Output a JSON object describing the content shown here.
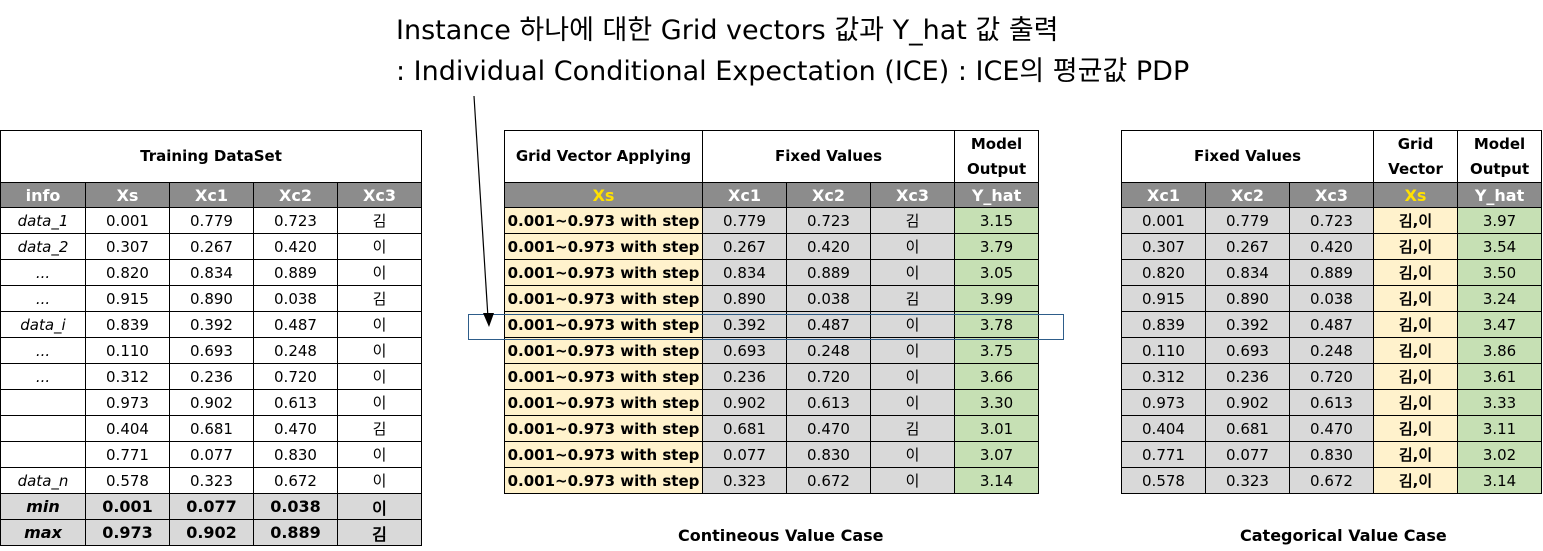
{
  "titles": {
    "line1": "Instance 하나에 대한 Grid vectors 값과 Y_hat 값 출력",
    "line2": ": Individual Conditional Expectation (ICE) : ICE의 평균값 PDP"
  },
  "training": {
    "title": "Training DataSet",
    "columns": [
      "info",
      "Xs",
      "Xc1",
      "Xc2",
      "Xc3"
    ],
    "rows": [
      [
        "data_1",
        "0.001",
        "0.779",
        "0.723",
        "김"
      ],
      [
        "data_2",
        "0.307",
        "0.267",
        "0.420",
        "이"
      ],
      [
        "...",
        "0.820",
        "0.834",
        "0.889",
        "이"
      ],
      [
        "...",
        "0.915",
        "0.890",
        "0.038",
        "김"
      ],
      [
        "data_i",
        "0.839",
        "0.392",
        "0.487",
        "이"
      ],
      [
        "...",
        "0.110",
        "0.693",
        "0.248",
        "이"
      ],
      [
        "...",
        "0.312",
        "0.236",
        "0.720",
        "이"
      ],
      [
        "",
        "0.973",
        "0.902",
        "0.613",
        "이"
      ],
      [
        "",
        "0.404",
        "0.681",
        "0.470",
        "김"
      ],
      [
        "",
        "0.771",
        "0.077",
        "0.830",
        "이"
      ],
      [
        "data_n",
        "0.578",
        "0.323",
        "0.672",
        "이"
      ]
    ],
    "summary": [
      [
        "min",
        "0.001",
        "0.077",
        "0.038",
        "이"
      ],
      [
        "max",
        "0.973",
        "0.902",
        "0.889",
        "김"
      ]
    ]
  },
  "continuous": {
    "header": {
      "grid": "Grid Vector Applying",
      "fixed": "Fixed Values",
      "output_line1": "Model",
      "output_line2": "Output"
    },
    "columns": [
      "Xs",
      "Xc1",
      "Xc2",
      "Xc3",
      "Y_hat"
    ],
    "rows": [
      [
        "0.001~0.973 with step",
        "0.779",
        "0.723",
        "김",
        "3.15"
      ],
      [
        "0.001~0.973 with step",
        "0.267",
        "0.420",
        "이",
        "3.79"
      ],
      [
        "0.001~0.973 with step",
        "0.834",
        "0.889",
        "이",
        "3.05"
      ],
      [
        "0.001~0.973 with step",
        "0.890",
        "0.038",
        "김",
        "3.99"
      ],
      [
        "0.001~0.973 with step",
        "0.392",
        "0.487",
        "이",
        "3.78"
      ],
      [
        "0.001~0.973 with step",
        "0.693",
        "0.248",
        "이",
        "3.75"
      ],
      [
        "0.001~0.973 with step",
        "0.236",
        "0.720",
        "이",
        "3.66"
      ],
      [
        "0.001~0.973 with step",
        "0.902",
        "0.613",
        "이",
        "3.30"
      ],
      [
        "0.001~0.973 with step",
        "0.681",
        "0.470",
        "김",
        "3.01"
      ],
      [
        "0.001~0.973 with step",
        "0.077",
        "0.830",
        "이",
        "3.07"
      ],
      [
        "0.001~0.973 with step",
        "0.323",
        "0.672",
        "이",
        "3.14"
      ]
    ],
    "caption": "Contineous Value Case"
  },
  "categorical": {
    "header": {
      "fixed": "Fixed Values",
      "grid_line1": "Grid",
      "grid_line2": "Vector",
      "output_line1": "Model",
      "output_line2": "Output"
    },
    "columns": [
      "Xc1",
      "Xc2",
      "Xc3",
      "Xs",
      "Y_hat"
    ],
    "rows": [
      [
        "0.001",
        "0.779",
        "0.723",
        "김,이",
        "3.97"
      ],
      [
        "0.307",
        "0.267",
        "0.420",
        "김,이",
        "3.54"
      ],
      [
        "0.820",
        "0.834",
        "0.889",
        "김,이",
        "3.50"
      ],
      [
        "0.915",
        "0.890",
        "0.038",
        "김,이",
        "3.24"
      ],
      [
        "0.839",
        "0.392",
        "0.487",
        "김,이",
        "3.47"
      ],
      [
        "0.110",
        "0.693",
        "0.248",
        "김,이",
        "3.86"
      ],
      [
        "0.312",
        "0.236",
        "0.720",
        "김,이",
        "3.61"
      ],
      [
        "0.973",
        "0.902",
        "0.613",
        "김,이",
        "3.33"
      ],
      [
        "0.404",
        "0.681",
        "0.470",
        "김,이",
        "3.11"
      ],
      [
        "0.771",
        "0.077",
        "0.830",
        "김,이",
        "3.02"
      ],
      [
        "0.578",
        "0.323",
        "0.672",
        "김,이",
        "3.14"
      ]
    ],
    "caption": "Categorical Value Case"
  },
  "colors": {
    "header_gray": "#8c8c8c",
    "xs_yellow": "#ffe000",
    "grid_cell": "#fff2cc",
    "fixed_cell": "#d9d9d9",
    "output_cell": "#c6e0b4",
    "highlight_box": "#2e5d8a"
  }
}
